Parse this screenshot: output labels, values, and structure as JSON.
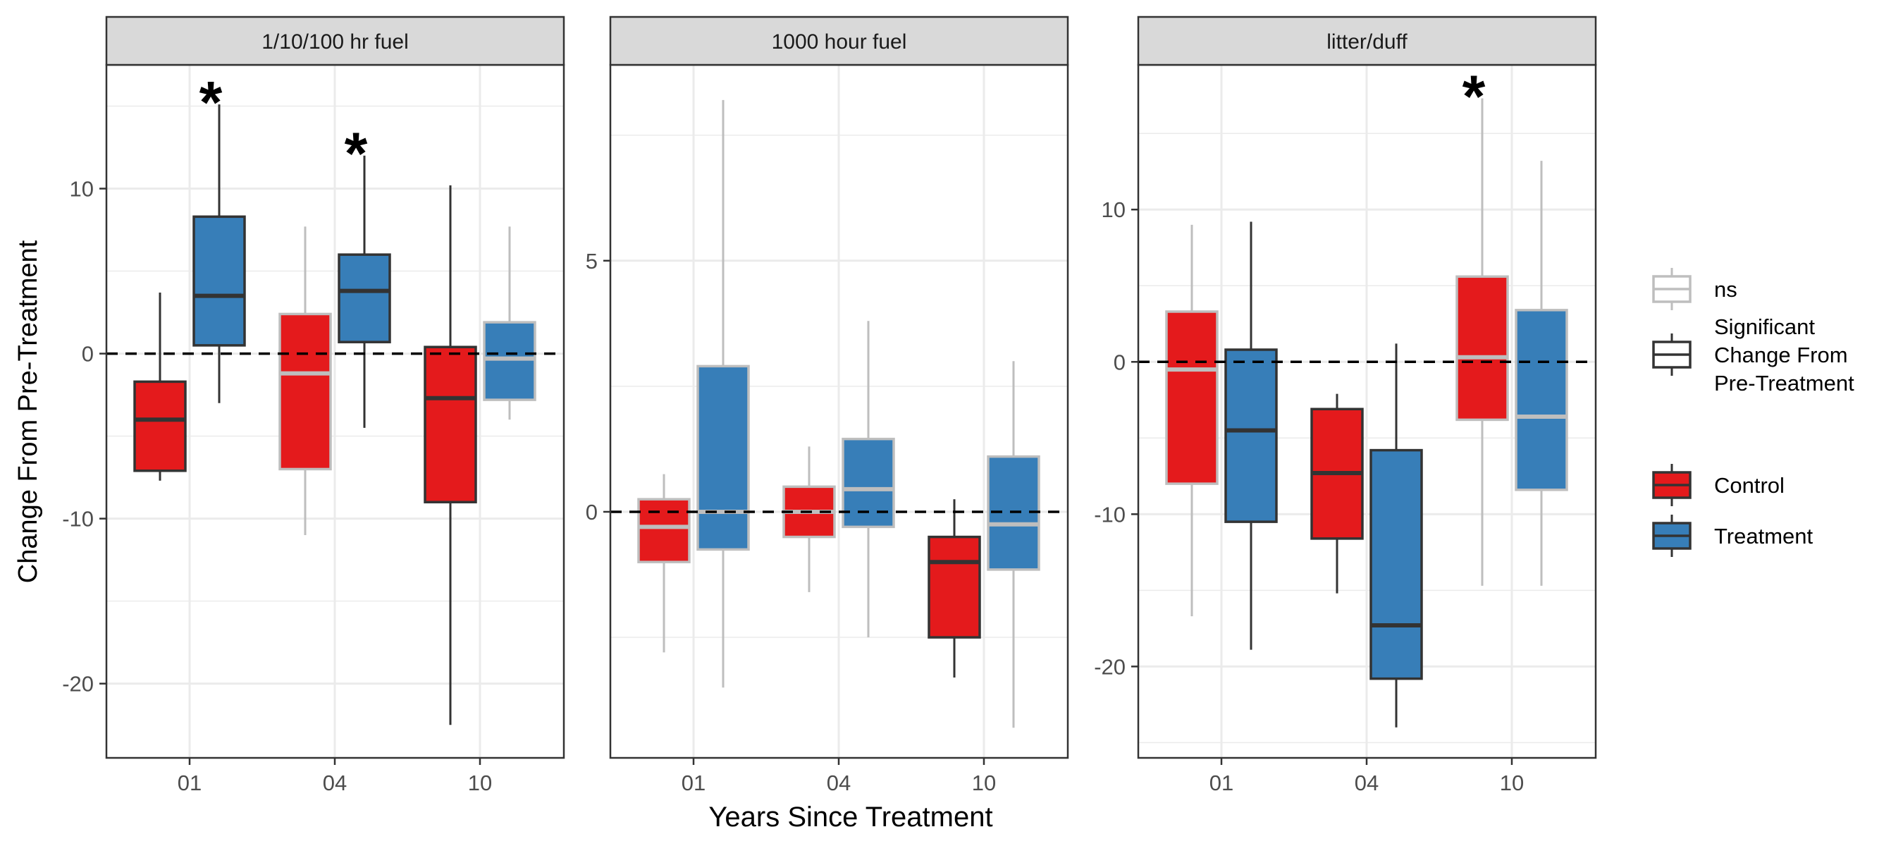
{
  "chart_data": {
    "type": "box",
    "xlabel": "Years Since Treatment",
    "ylabel": "Change From Pre-Treatment",
    "categories": [
      "01",
      "04",
      "10"
    ],
    "groups": [
      "Control",
      "Treatment"
    ],
    "colors": {
      "Control": "#e41a1c",
      "Treatment": "#377eb8",
      "ns_outline": "#bebebe",
      "sig_outline": "#333333",
      "strip": "#d9d9d9",
      "grid": "#ebebeb"
    },
    "legend": {
      "position": "right",
      "outline_items": [
        {
          "key": "ns",
          "label": "ns",
          "outline": "ns"
        },
        {
          "key": "sig",
          "label": "Significant Change From Pre-Treatment",
          "lines": [
            "Significant",
            "Change From",
            "Pre-Treatment"
          ],
          "outline": "sig"
        }
      ],
      "fill_items": [
        {
          "key": "Control",
          "label": "Control"
        },
        {
          "key": "Treatment",
          "label": "Treatment"
        }
      ]
    },
    "reference_line": 0,
    "significance_marker": "*",
    "panels": [
      {
        "title": "1/10/100 hr fuel",
        "ylim": [
          -24.5,
          17.5
        ],
        "yticks": [
          -20,
          -10,
          0,
          10
        ],
        "tick_labels": [
          "-20",
          "-10",
          "0",
          "10"
        ],
        "boxes": [
          {
            "category": "01",
            "group": "Control",
            "min": -7.7,
            "q1": -7.1,
            "median": -4.0,
            "q3": -1.7,
            "max": 3.7,
            "significant": true,
            "star": false
          },
          {
            "category": "01",
            "group": "Treatment",
            "min": -3.0,
            "q1": 0.5,
            "median": 3.5,
            "q3": 8.3,
            "max": 15.1,
            "significant": true,
            "star": true
          },
          {
            "category": "04",
            "group": "Control",
            "min": -11.0,
            "q1": -7.0,
            "median": -1.2,
            "q3": 2.4,
            "max": 7.7,
            "significant": false,
            "star": false
          },
          {
            "category": "04",
            "group": "Treatment",
            "min": -4.5,
            "q1": 0.7,
            "median": 3.8,
            "q3": 6.0,
            "max": 12.0,
            "significant": true,
            "star": true
          },
          {
            "category": "10",
            "group": "Control",
            "min": -22.5,
            "q1": -9.0,
            "median": -2.7,
            "q3": 0.4,
            "max": 10.2,
            "significant": true,
            "star": false
          },
          {
            "category": "10",
            "group": "Treatment",
            "min": -4.0,
            "q1": -2.8,
            "median": -0.3,
            "q3": 1.9,
            "max": 7.7,
            "significant": false,
            "star": false
          }
        ]
      },
      {
        "title": "1000 hour fuel",
        "ylim": [
          -4.9,
          8.9
        ],
        "yticks": [
          0,
          5
        ],
        "tick_labels": [
          "0",
          "5"
        ],
        "boxes": [
          {
            "category": "01",
            "group": "Control",
            "min": -2.8,
            "q1": -1.0,
            "median": -0.3,
            "q3": 0.25,
            "max": 0.75,
            "significant": false,
            "star": false
          },
          {
            "category": "01",
            "group": "Treatment",
            "min": -3.5,
            "q1": -0.75,
            "median": 0.0,
            "q3": 2.9,
            "max": 8.2,
            "significant": false,
            "star": false
          },
          {
            "category": "04",
            "group": "Control",
            "min": -1.6,
            "q1": -0.5,
            "median": 0.0,
            "q3": 0.5,
            "max": 1.3,
            "significant": false,
            "star": false
          },
          {
            "category": "04",
            "group": "Treatment",
            "min": -2.5,
            "q1": -0.3,
            "median": 0.45,
            "q3": 1.45,
            "max": 3.8,
            "significant": false,
            "star": false
          },
          {
            "category": "10",
            "group": "Control",
            "min": -3.3,
            "q1": -2.5,
            "median": -1.0,
            "q3": -0.5,
            "max": 0.25,
            "significant": true,
            "star": false
          },
          {
            "category": "10",
            "group": "Treatment",
            "min": -4.3,
            "q1": -1.15,
            "median": -0.25,
            "q3": 1.1,
            "max": 3.0,
            "significant": false,
            "star": false
          }
        ]
      },
      {
        "title": "litter/duff",
        "ylim": [
          -26.0,
          19.5
        ],
        "yticks": [
          -20,
          -10,
          0,
          10
        ],
        "tick_labels": [
          "-20",
          "-10",
          "0",
          "10"
        ],
        "boxes": [
          {
            "category": "01",
            "group": "Control",
            "min": -16.7,
            "q1": -8.0,
            "median": -0.5,
            "q3": 3.3,
            "max": 9.0,
            "significant": false,
            "star": false
          },
          {
            "category": "01",
            "group": "Treatment",
            "min": -18.9,
            "q1": -10.5,
            "median": -4.5,
            "q3": 0.8,
            "max": 9.2,
            "significant": true,
            "star": false
          },
          {
            "category": "04",
            "group": "Control",
            "min": -15.2,
            "q1": -11.6,
            "median": -7.3,
            "q3": -3.1,
            "max": -2.1,
            "significant": true,
            "star": false
          },
          {
            "category": "04",
            "group": "Treatment",
            "min": -24.0,
            "q1": -20.8,
            "median": -17.3,
            "q3": -5.8,
            "max": 1.2,
            "significant": true,
            "star": false
          },
          {
            "category": "10",
            "group": "Control",
            "min": -14.7,
            "q1": -3.8,
            "median": 0.3,
            "q3": 5.6,
            "max": 17.3,
            "significant": false,
            "star": true
          },
          {
            "category": "10",
            "group": "Treatment",
            "min": -14.7,
            "q1": -8.4,
            "median": -3.6,
            "q3": 3.4,
            "max": 13.2,
            "significant": false,
            "star": false
          }
        ]
      }
    ]
  }
}
